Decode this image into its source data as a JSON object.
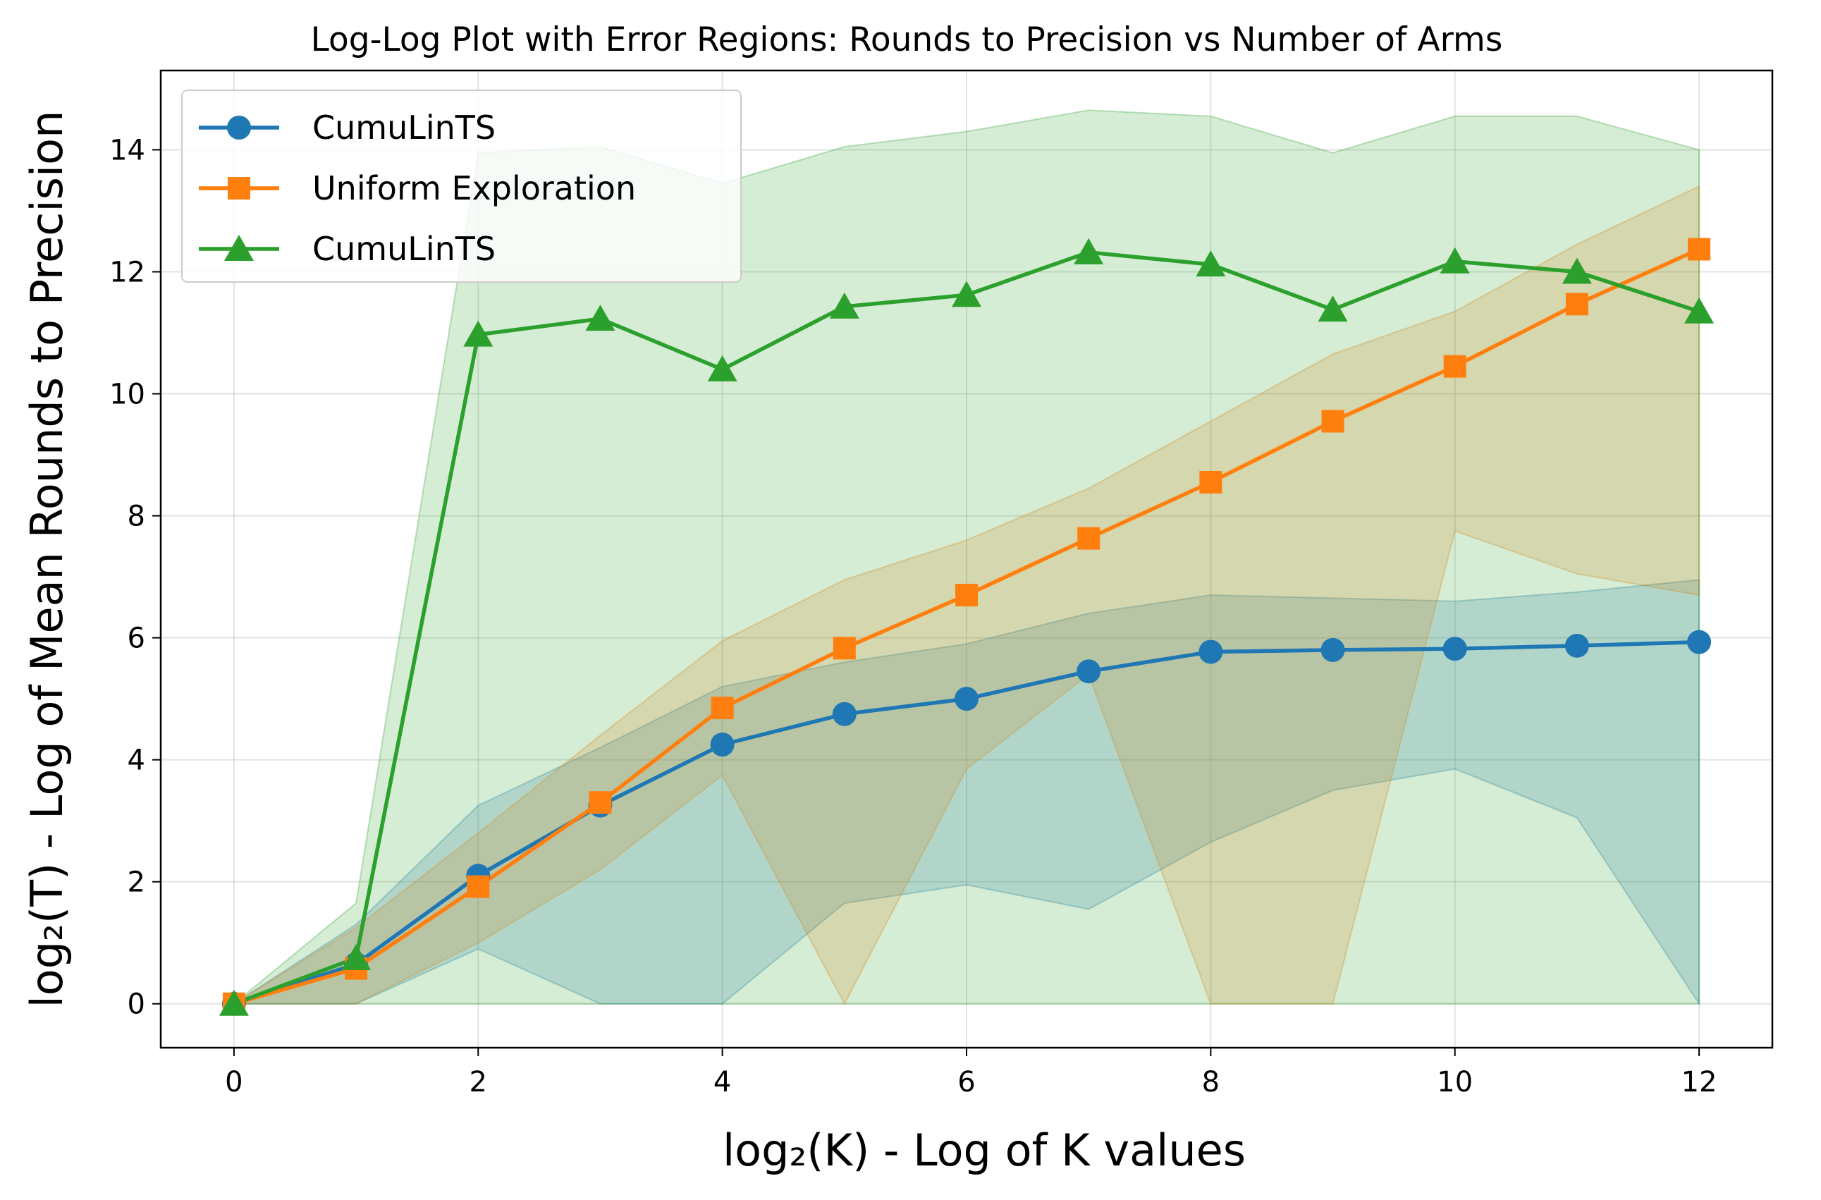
{
  "chart_data": {
    "type": "line",
    "title": "Log-Log Plot with Error Regions: Rounds to Precision vs Number of Arms",
    "xlabel": "log₂(K) - Log of K values",
    "ylabel": "log₂(T) - Log of Mean Rounds to Precision",
    "xlim": [
      -0.6,
      12.6
    ],
    "ylim": [
      -0.72,
      15.3
    ],
    "xticks": [
      0,
      2,
      4,
      6,
      8,
      10,
      12
    ],
    "yticks": [
      0,
      2,
      4,
      6,
      8,
      10,
      12,
      14
    ],
    "grid": true,
    "legend_position": "upper-left",
    "x": [
      0,
      1,
      2,
      3,
      4,
      5,
      6,
      7,
      8,
      9,
      10,
      11,
      12
    ],
    "series": [
      {
        "name": "CumuLinTS",
        "color": "#1f77b4",
        "marker": "circle",
        "values": [
          0.0,
          0.65,
          2.1,
          3.25,
          4.25,
          4.75,
          5.0,
          5.45,
          5.77,
          5.8,
          5.82,
          5.87,
          5.93
        ],
        "upper": [
          0.0,
          1.3,
          3.25,
          4.2,
          5.2,
          5.6,
          5.9,
          6.4,
          6.7,
          6.65,
          6.6,
          6.75,
          6.95
        ],
        "lower": [
          0.0,
          0.0,
          0.9,
          0.0,
          0.0,
          1.65,
          1.95,
          1.55,
          2.65,
          3.5,
          3.85,
          3.05,
          0.0
        ]
      },
      {
        "name": "Uniform Exploration",
        "color": "#ff7f0e",
        "marker": "square",
        "values": [
          0.0,
          0.58,
          1.92,
          3.3,
          4.85,
          5.83,
          6.7,
          7.63,
          8.55,
          9.55,
          10.45,
          11.47,
          12.37
        ],
        "upper": [
          0.0,
          1.25,
          2.8,
          4.4,
          5.95,
          6.95,
          7.6,
          8.45,
          9.55,
          10.65,
          11.35,
          12.45,
          13.4
        ],
        "lower": [
          0.0,
          0.0,
          1.0,
          2.2,
          3.75,
          0.0,
          3.85,
          5.4,
          0.0,
          0.0,
          7.75,
          7.05,
          6.7
        ]
      },
      {
        "name": "CumuLinTS",
        "color": "#2ca02c",
        "marker": "triangle",
        "values": [
          0.0,
          0.75,
          10.97,
          11.23,
          10.4,
          11.43,
          11.62,
          12.32,
          12.12,
          11.38,
          12.17,
          12.0,
          11.35
        ],
        "upper": [
          0.0,
          1.65,
          13.95,
          14.05,
          13.45,
          14.05,
          14.3,
          14.65,
          14.55,
          13.95,
          14.55,
          14.55,
          14.0
        ],
        "lower": [
          0.0,
          0.0,
          0.0,
          0.0,
          0.0,
          0.0,
          0.0,
          0.0,
          0.0,
          0.0,
          0.0,
          0.0,
          0.0
        ]
      }
    ]
  }
}
